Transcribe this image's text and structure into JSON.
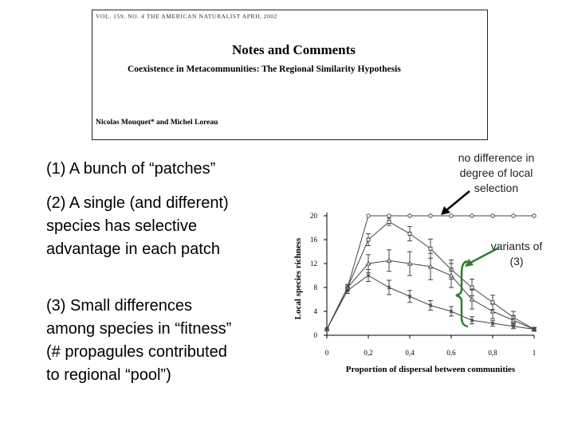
{
  "paper": {
    "journal_line": "VOL. 159, NO. 4    THE AMERICAN NATURALIST    APRIL 2002",
    "section": "Notes and Comments",
    "title": "Coexistence in Metacommunities: The Regional Similarity Hypothesis",
    "authors": "Nicolas Mouquet* and Michel Loreau"
  },
  "points": [
    "(1) A bunch of “patches”",
    "(2) A single (and different) species has selective advantage in each patch",
    "(3) Small differences among species in “fitness” (# propagules contributed to regional “pool”)"
  ],
  "callouts": {
    "top": "no difference in degree of local selection",
    "variants": "variants of (3)"
  },
  "colors": {
    "arrow": "#000000",
    "bracket": "#2e7d32",
    "series": "#444444"
  },
  "chart_data": {
    "type": "line",
    "xlabel": "Proportion of dispersal between communities",
    "ylabel": "Local species richness",
    "xlim": [
      0,
      1
    ],
    "ylim": [
      0,
      20
    ],
    "xticks": [
      0,
      0.2,
      0.4,
      0.6,
      0.8,
      1
    ],
    "xtick_labels": [
      "0",
      "0,2",
      "0,4",
      "0,6",
      "0,8",
      "1"
    ],
    "yticks": [
      0,
      4,
      8,
      12,
      16,
      20
    ],
    "x": [
      0,
      0.1,
      0.2,
      0.3,
      0.4,
      0.5,
      0.6,
      0.7,
      0.8,
      0.9,
      1
    ],
    "series": [
      {
        "values": [
          1,
          8,
          20,
          20,
          20,
          20,
          20,
          20,
          20,
          20,
          20
        ],
        "errors": [
          0,
          0,
          0,
          0,
          0,
          0,
          0,
          0,
          0,
          0,
          0
        ],
        "marker": "open-circle"
      },
      {
        "values": [
          1,
          8,
          16,
          19,
          17,
          14.5,
          11,
          8,
          5.5,
          3,
          1
        ],
        "errors": [
          0,
          0.5,
          1,
          0.6,
          1.2,
          1.6,
          1.6,
          1.4,
          1.2,
          1,
          0.3
        ],
        "marker": "square"
      },
      {
        "values": [
          1,
          8,
          12,
          12.5,
          12,
          11.5,
          10,
          6,
          4,
          2.5,
          1
        ],
        "errors": [
          0,
          0.5,
          1.5,
          1.8,
          2,
          2.2,
          2,
          1.6,
          1.2,
          0.8,
          0.3
        ],
        "marker": "triangle"
      },
      {
        "values": [
          1,
          7.5,
          10,
          8,
          6.5,
          5,
          4,
          2.5,
          2,
          1.5,
          1
        ],
        "errors": [
          0,
          0.5,
          1,
          1.2,
          1,
          0.8,
          0.8,
          0.6,
          0.5,
          0.4,
          0.3
        ],
        "marker": "cross"
      }
    ]
  }
}
